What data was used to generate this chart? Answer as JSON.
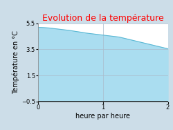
{
  "title": "Evolution de la température",
  "title_color": "#ff0000",
  "xlabel": "heure par heure",
  "ylabel": "Température en °C",
  "xlim": [
    0,
    2
  ],
  "ylim": [
    -0.5,
    5.5
  ],
  "xticks": [
    0,
    1,
    2
  ],
  "yticks": [
    -0.5,
    1.5,
    3.5,
    5.5
  ],
  "x_data": [
    0.0,
    0.083,
    0.167,
    0.25,
    0.333,
    0.417,
    0.5,
    0.583,
    0.667,
    0.75,
    0.833,
    0.917,
    1.0,
    1.083,
    1.167,
    1.25,
    1.333,
    1.417,
    1.5,
    1.583,
    1.667,
    1.75,
    1.833,
    1.917,
    2.0
  ],
  "y_data": [
    5.2,
    5.18,
    5.15,
    5.1,
    5.05,
    5.0,
    4.95,
    4.88,
    4.82,
    4.75,
    4.7,
    4.65,
    4.6,
    4.55,
    4.5,
    4.45,
    4.35,
    4.25,
    4.15,
    4.05,
    3.95,
    3.85,
    3.75,
    3.65,
    3.55
  ],
  "line_color": "#5ab8d4",
  "fill_color": "#aaddf0",
  "fill_alpha": 1.0,
  "background_color": "#ccdde8",
  "plot_bg_color": "#ffffff",
  "grid_color": "#aabbcc",
  "tick_label_fontsize": 6,
  "axis_label_fontsize": 7,
  "title_fontsize": 9
}
